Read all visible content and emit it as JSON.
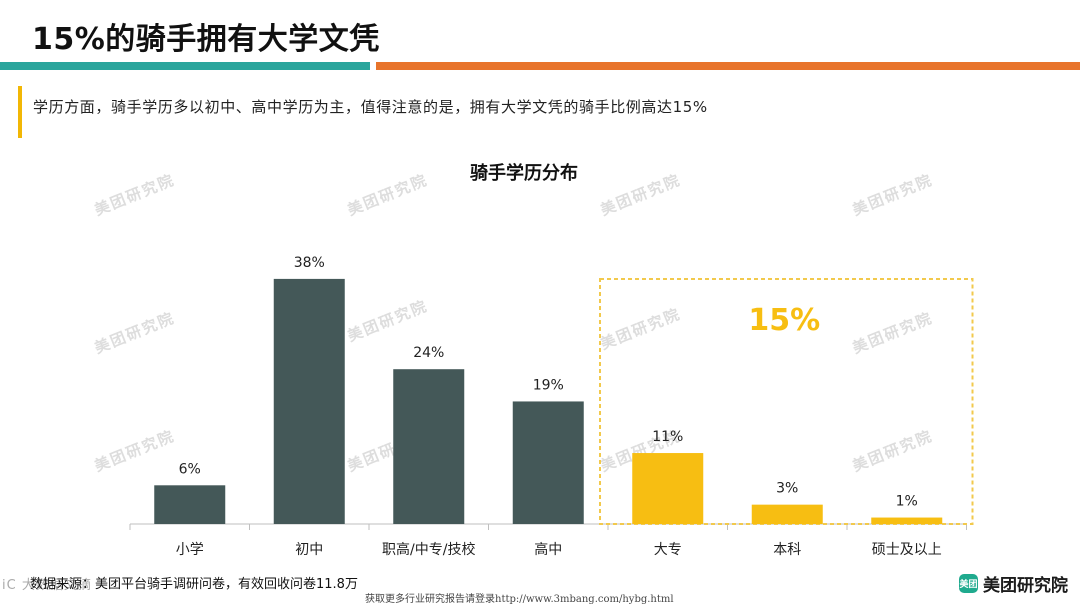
{
  "header": {
    "title": "15%的骑手拥有大学文凭",
    "subtitle": "学历方面，骑手学历多以初中、高中学历为主，值得注意的是，拥有大学文凭的骑手比例高达15%"
  },
  "colors": {
    "accent_teal": "#2aa59c",
    "accent_orange": "#e8742b",
    "bar_dark": "#445858",
    "bar_highlight": "#f7be12",
    "highlight_box": "#f2c94c"
  },
  "chart_data": {
    "type": "bar",
    "title": "骑手学历分布",
    "xlabel": "",
    "ylabel": "",
    "categories": [
      "小学",
      "初中",
      "职高/中专/技校",
      "高中",
      "大专",
      "本科",
      "硕士及以上"
    ],
    "values": [
      6,
      38,
      24,
      19,
      11,
      3,
      1
    ],
    "value_labels": [
      "6%",
      "38%",
      "24%",
      "19%",
      "11%",
      "3%",
      "1%"
    ],
    "highlighted": [
      false,
      false,
      false,
      false,
      true,
      true,
      true
    ],
    "ylim": [
      0,
      40
    ],
    "grid": false,
    "annotation": {
      "text": "15%",
      "covers": [
        "大专",
        "本科",
        "硕士及以上"
      ]
    }
  },
  "watermark": {
    "text": "美团研究院"
  },
  "footer": {
    "source": "数据来源：美团平台骑手调研问卷，有效回收问卷11.8万",
    "link_text": "获取更多行业研究报告请登录http://www.3mbang.com/hybg.html",
    "brand_icon": "美团",
    "brand_name": "美团研究院",
    "corner_logo": "iC 大数据文摘"
  }
}
